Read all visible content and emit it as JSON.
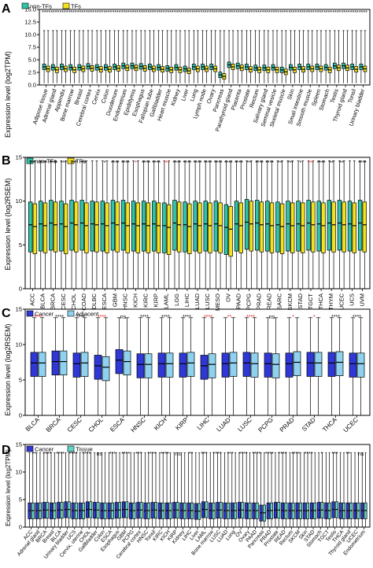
{
  "chart_data": [
    {
      "panel": "A",
      "type": "box",
      "ylabel": "Expression level (log2TPM)",
      "ylim": [
        0,
        15
      ],
      "yticks": [
        "0.0",
        "2.5",
        "5.0",
        "7.5",
        "10.0",
        "12.5",
        "15.0"
      ],
      "legend": [
        "non-TFs",
        "TFs"
      ],
      "categories": [
        "Adipose tissue",
        "Adrenal gland",
        "Appendix",
        "Bone marrow",
        "Breast",
        "Cerebral cortex",
        "Cervix",
        "Colon",
        "Duodenum",
        "Endometrium",
        "Epididymis",
        "Esophagus",
        "Fallopian tube",
        "Gallbladder",
        "Heart muscle",
        "Kidney",
        "Liver",
        "Lung",
        "Lymph node",
        "Ovary",
        "Pancreas",
        "Parathyroid gland",
        "Placenta",
        "Prostate",
        "Rectum",
        "Salivary gland",
        "Seminal vesicle",
        "Skeletal muscle",
        "Skin",
        "Small intestine",
        "Smooth muscle",
        "Spleen",
        "Stomach",
        "Testis",
        "Thyroid gland",
        "Tonsil",
        "Urinary bladder"
      ],
      "stars": [
        "****",
        "****",
        "****",
        "****",
        "****",
        "****",
        "****",
        "****",
        "****",
        "****",
        "****",
        "****",
        "****",
        "****",
        "****",
        "****",
        "****",
        "****",
        "****",
        "****",
        "****",
        "****",
        "****",
        "****",
        "****",
        "****",
        "****",
        "****",
        "****",
        "****",
        "****",
        "****",
        "****",
        "****",
        "****",
        "****",
        "****"
      ],
      "series": [
        {
          "name": "non-TFs",
          "color": "#2ec4a7",
          "median": [
            3.6,
            3.5,
            3.6,
            3.5,
            3.5,
            3.7,
            3.5,
            3.5,
            3.6,
            3.8,
            3.8,
            3.7,
            3.6,
            3.5,
            3.3,
            3.5,
            3.2,
            3.6,
            3.6,
            3.6,
            2.0,
            4.0,
            3.8,
            3.6,
            3.4,
            3.4,
            3.5,
            3.0,
            3.5,
            3.6,
            3.6,
            3.6,
            3.5,
            3.8,
            3.8,
            3.6,
            3.6
          ]
        },
        {
          "name": "TFs",
          "color": "#f2e31b",
          "median": [
            3.2,
            3.0,
            3.2,
            3.0,
            3.2,
            3.3,
            3.1,
            3.1,
            3.3,
            3.4,
            3.4,
            3.3,
            3.2,
            3.1,
            3.0,
            3.0,
            2.8,
            3.2,
            3.2,
            3.2,
            1.7,
            3.6,
            3.4,
            3.1,
            3.0,
            3.0,
            3.0,
            2.6,
            3.0,
            3.1,
            3.2,
            3.2,
            3.0,
            3.4,
            3.4,
            3.1,
            3.2
          ]
        }
      ]
    },
    {
      "panel": "B",
      "type": "box",
      "ylabel": "Expression level (log2RSEM)",
      "ylim": [
        0,
        15
      ],
      "yticks": [
        "0",
        "5",
        "10",
        "15"
      ],
      "legend": [
        "non-TFs",
        "TFs"
      ],
      "categories": [
        "ACC",
        "BLCA",
        "BRCA",
        "CESC",
        "CHOL",
        "COAD",
        "DLBC",
        "ESCA",
        "GBM",
        "HNSC",
        "KICH",
        "KIRC",
        "KIRP",
        "LAML",
        "LGG",
        "LIHC",
        "LUAD",
        "LUSC",
        "MESO",
        "OV",
        "PAAD",
        "PCPG",
        "PRAD",
        "READ",
        "SARC",
        "SKCM",
        "STAD",
        "TGCT",
        "THCA",
        "THYM",
        "UCEC",
        "UCS",
        "UVM"
      ],
      "stars": [
        "**",
        "****",
        "****",
        "***",
        "**",
        "**",
        "",
        "*",
        "****",
        "****",
        "*",
        "****",
        "****",
        "***",
        "****",
        "****",
        "****",
        "****",
        "****",
        "****",
        "****",
        "**",
        "****",
        "****",
        "**",
        "***",
        "*",
        "***",
        "****",
        "**",
        "**",
        "",
        "****"
      ],
      "star_colors": [
        "#000000",
        "#000000",
        "#000000",
        "#000000",
        "#000000",
        "#000000",
        "#000000",
        "#000000",
        "#000000",
        "#000000",
        "#e02020",
        "#000000",
        "#000000",
        "#e02020",
        "#000000",
        "#000000",
        "#000000",
        "#000000",
        "#000000",
        "#000000",
        "#000000",
        "#000000",
        "#000000",
        "#000000",
        "#000000",
        "#000000",
        "#000000",
        "#e02020",
        "#000000",
        "#000000",
        "#000000",
        "#000000",
        "#000000"
      ],
      "series": [
        {
          "name": "non-TFs",
          "color": "#2ec4a7",
          "median": [
            7.3,
            7.4,
            7.5,
            7.4,
            7.5,
            7.5,
            7.4,
            7.4,
            7.5,
            7.5,
            7.4,
            7.4,
            7.4,
            7.2,
            7.5,
            7.3,
            7.4,
            7.4,
            7.4,
            7.0,
            7.4,
            7.6,
            7.5,
            7.4,
            7.3,
            7.4,
            7.4,
            7.5,
            7.4,
            7.5,
            7.5,
            7.4,
            7.5
          ]
        },
        {
          "name": "TFs",
          "color": "#f2e31b",
          "median": [
            7.1,
            7.2,
            7.3,
            7.1,
            7.3,
            7.2,
            7.3,
            7.2,
            7.3,
            7.2,
            7.2,
            7.2,
            7.2,
            7.0,
            7.3,
            7.1,
            7.2,
            7.2,
            7.2,
            6.8,
            7.2,
            7.4,
            7.3,
            7.2,
            7.1,
            7.2,
            7.2,
            7.3,
            7.2,
            7.3,
            7.3,
            7.2,
            7.3
          ]
        }
      ]
    },
    {
      "panel": "C",
      "type": "box",
      "ylabel": "Expression level (log2RSEM)",
      "ylim": [
        0,
        15
      ],
      "yticks": [
        "0",
        "5",
        "10",
        "15"
      ],
      "legend": [
        "Cancer",
        "Adjacent"
      ],
      "categories": [
        "BLCA",
        "BRCA",
        "CESC",
        "CHOL",
        "ESCA",
        "HNSC",
        "KICH",
        "KIRP",
        "LIHC",
        "LUAD",
        "LUSC",
        "PCPG",
        "PRAD",
        "STAD",
        "THCA",
        "UCEC"
      ],
      "stars": [
        "****",
        "****",
        "****",
        "****",
        "ns",
        "****",
        "****",
        "****",
        "****",
        "**",
        "****",
        "ns",
        "*",
        "*",
        "****",
        "****"
      ],
      "star_colors": [
        "#e02020",
        "#000000",
        "#000000",
        "#e02020",
        "#000000",
        "#000000",
        "#000000",
        "#000000",
        "#e02020",
        "#e02020",
        "#e02020",
        "#000000",
        "#e02020",
        "#e02020",
        "#000000",
        "#000000"
      ],
      "series": [
        {
          "name": "Cancer",
          "color": "#2f38d6",
          "median": [
            7.4,
            7.6,
            7.3,
            7.0,
            7.8,
            7.2,
            7.3,
            7.3,
            7.0,
            7.3,
            7.4,
            7.3,
            7.3,
            7.4,
            7.4,
            7.3
          ]
        },
        {
          "name": "Adjacent",
          "color": "#8fd2f0",
          "median": [
            7.4,
            7.6,
            7.4,
            6.8,
            7.6,
            7.2,
            7.3,
            7.4,
            7.2,
            7.4,
            7.3,
            7.2,
            7.5,
            7.4,
            7.5,
            7.3
          ]
        }
      ]
    },
    {
      "panel": "D",
      "type": "box",
      "ylabel": "Expression level (log2TPM)",
      "ylim": [
        0,
        15
      ],
      "yticks": [
        "0",
        "5",
        "10",
        "15"
      ],
      "legend": [
        "Cancer",
        "Tissue"
      ],
      "categories": [
        "ACC",
        "Adrenal gland",
        "BRCA",
        "Breast",
        "BLCA",
        "Urinary bladder",
        "UCS",
        "Cervix, uterine",
        "CHOL",
        "Gallbladder",
        "Colon",
        "ESCA",
        "Esophagus",
        "GBM",
        "PCPG",
        "Cerebral cortex",
        "HNSC",
        "Tonsil",
        "KIRC",
        "KICH",
        "KIRP",
        "Kidney",
        "LIHC",
        "Liver",
        "LAML",
        "Bone marrow",
        "LUSC",
        "LUAD",
        "Lung",
        "OV",
        "Ovary",
        "PAAD",
        "Pancreas",
        "PRAD",
        "Prostate",
        "READ",
        "Rectum",
        "SKCM",
        "Skin",
        "STAD",
        "Stomach",
        "TGCT",
        "Testis",
        "THCA",
        "Thyroid gland",
        "UCEC",
        "Endometrium"
      ],
      "stars": [
        "**",
        "****",
        "****",
        "****",
        "****",
        "ns",
        "***",
        "****",
        "***",
        "****",
        "****",
        "ns",
        "**",
        "***",
        "****",
        "***",
        "****",
        "****",
        "****",
        "****",
        "****",
        "****",
        "*",
        "***",
        "**",
        "ns"
      ],
      "series": [
        {
          "name": "Cancer",
          "color": "#2f38d6",
          "median": [
            3.0,
            3.0,
            3.1,
            3.0,
            3.1,
            3.2,
            3.0,
            3.0,
            3.2,
            3.1,
            3.0,
            3.0,
            3.1,
            3.2,
            3.0,
            3.1,
            3.0,
            3.1,
            3.0,
            3.0,
            3.1,
            3.0,
            3.0,
            2.9,
            3.2,
            3.0,
            3.1,
            3.0,
            3.0,
            3.1,
            3.0,
            3.0,
            2.6,
            3.0,
            3.1,
            3.0,
            3.0,
            3.0,
            3.0,
            3.0,
            3.1,
            3.0,
            3.2,
            3.0,
            3.0,
            3.0,
            3.0
          ]
        },
        {
          "name": "Tissue",
          "color": "#5fd6c8",
          "median": [
            3.0,
            3.0,
            3.1,
            3.0,
            3.1,
            3.2,
            3.0,
            3.0,
            3.2,
            3.1,
            3.0,
            3.0,
            3.1,
            3.2,
            3.0,
            3.1,
            3.0,
            3.1,
            3.0,
            3.0,
            3.1,
            3.0,
            3.0,
            2.9,
            3.2,
            3.0,
            3.1,
            3.0,
            3.0,
            3.1,
            3.0,
            3.0,
            2.6,
            3.0,
            3.1,
            3.0,
            3.0,
            3.0,
            3.0,
            3.0,
            3.1,
            3.0,
            3.2,
            3.0,
            3.0,
            3.0,
            3.0
          ]
        }
      ]
    }
  ]
}
